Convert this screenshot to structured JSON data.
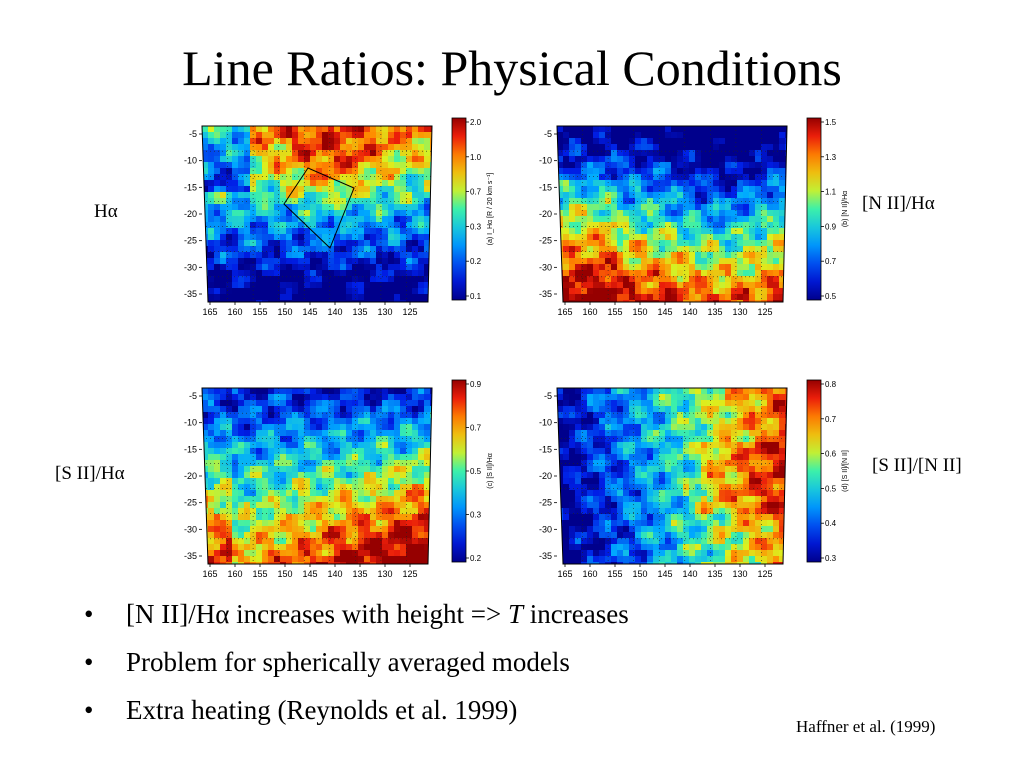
{
  "slide": {
    "title": "Line Ratios: Physical Conditions",
    "citation": "Haffner et al. (1999)",
    "bullets": [
      {
        "pre": "[N II]/Hα increases with height => ",
        "ital": "T",
        "post": " increases"
      },
      {
        "pre": "Problem for spherically averaged models",
        "ital": "",
        "post": ""
      },
      {
        "pre": "Extra heating (Reynolds et al. 1999)",
        "ital": "",
        "post": ""
      }
    ]
  },
  "chart_data": [
    {
      "type": "heatmap",
      "label": "Hα",
      "colorbar_title": "(a) I_Hα [R / 20 km s⁻¹]",
      "colorbar_ticks": [
        "2.0",
        "1.0",
        "0.7",
        "0.3",
        "0.2",
        "0.1"
      ],
      "x_ticks": [
        "165",
        "160",
        "155",
        "150",
        "145",
        "140",
        "135",
        "130",
        "125"
      ],
      "y_ticks": [
        "-5",
        "-10",
        "-15",
        "-20",
        "-25",
        "-30",
        "-35"
      ],
      "pattern": "red upper half, blue lower half, outlined box region"
    },
    {
      "type": "heatmap",
      "label": "[N II]/Hα",
      "colorbar_title": "(b) [N II]/Hα",
      "colorbar_ticks": [
        "1.5",
        "1.3",
        "1.1",
        "0.9",
        "0.7",
        "0.5"
      ],
      "x_ticks": [
        "165",
        "160",
        "155",
        "150",
        "145",
        "140",
        "135",
        "130",
        "125"
      ],
      "y_ticks": [
        "-5",
        "-10",
        "-15",
        "-20",
        "-25",
        "-30",
        "-35"
      ],
      "pattern": "blue upper half, red lower half"
    },
    {
      "type": "heatmap",
      "label": "[S II]/Hα",
      "colorbar_title": "(c) [S II]/Hα",
      "colorbar_ticks": [
        "0.9",
        "0.7",
        "0.5",
        "0.3",
        "0.2"
      ],
      "x_ticks": [
        "165",
        "160",
        "155",
        "150",
        "145",
        "140",
        "135",
        "130",
        "125"
      ],
      "y_ticks": [
        "-5",
        "-10",
        "-15",
        "-20",
        "-25",
        "-30",
        "-35"
      ],
      "pattern": "blue upper, red lower-right"
    },
    {
      "type": "heatmap",
      "label": "[S II]/[N II]",
      "colorbar_title": "(d) [S II]/[N II]",
      "colorbar_ticks": [
        "0.8",
        "0.7",
        "0.6",
        "0.5",
        "0.4",
        "0.3"
      ],
      "x_ticks": [
        "165",
        "160",
        "155",
        "150",
        "145",
        "140",
        "135",
        "130",
        "125"
      ],
      "y_ticks": [
        "-5",
        "-10",
        "-15",
        "-20",
        "-25",
        "-30",
        "-35"
      ],
      "pattern": "blue left, red right"
    }
  ]
}
